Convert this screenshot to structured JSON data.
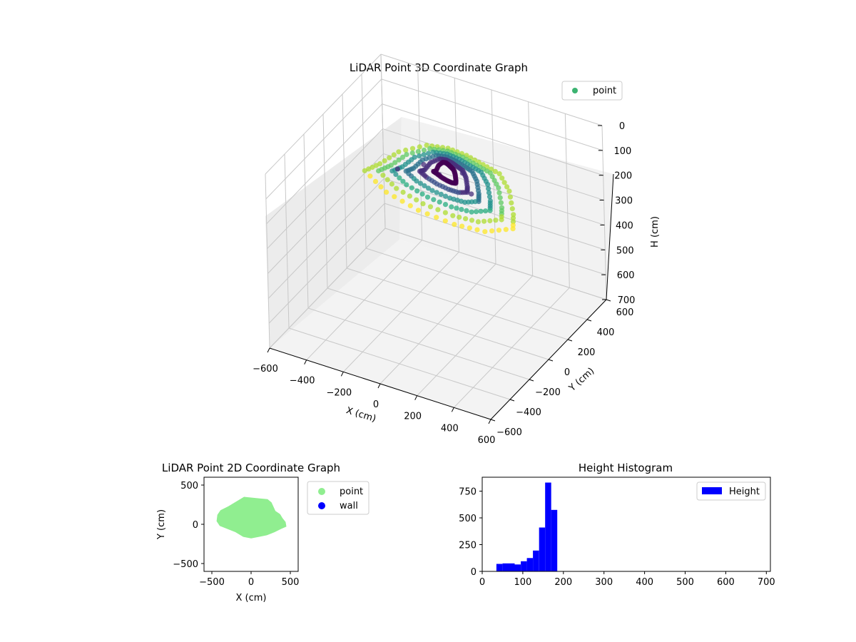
{
  "chart_data": [
    {
      "type": "scatter",
      "title": "LiDAR Point 3D Coordinate Graph",
      "xlabel": "X (cm)",
      "ylabel": "Y (cm)",
      "zlabel": "H (cm)",
      "xlim": [
        -600,
        600
      ],
      "ylim": [
        -600,
        600
      ],
      "zlim": [
        0,
        700
      ],
      "z_inverted": true,
      "xticks": [
        "−600",
        "−400",
        "−200",
        "0",
        "200",
        "400",
        "600"
      ],
      "yticks": [
        "−600",
        "−400",
        "−200",
        "0",
        "200",
        "400",
        "600"
      ],
      "zticks": [
        "0",
        "100",
        "200",
        "300",
        "400",
        "500",
        "600",
        "700"
      ],
      "legend": [
        {
          "label": "point",
          "color": "#3cb371"
        }
      ],
      "legend_position": "upper-right",
      "colormap": "viridis",
      "series": [
        {
          "name": "point",
          "description_points": "dome-shaped point cloud",
          "points": [
            {
              "x": -350,
              "y": 100,
              "h": 180
            },
            {
              "x": -300,
              "y": 200,
              "h": 160
            },
            {
              "x": -200,
              "y": 300,
              "h": 150
            },
            {
              "x": -100,
              "y": 330,
              "h": 150
            },
            {
              "x": 0,
              "y": 330,
              "h": 155
            },
            {
              "x": 100,
              "y": 310,
              "h": 160
            },
            {
              "x": 200,
              "y": 290,
              "h": 165
            },
            {
              "x": 300,
              "y": 200,
              "h": 175
            },
            {
              "x": 400,
              "y": 50,
              "h": 185
            },
            {
              "x": 450,
              "y": -50,
              "h": 190
            },
            {
              "x": 350,
              "y": -150,
              "h": 185
            },
            {
              "x": 200,
              "y": -180,
              "h": 180
            },
            {
              "x": 0,
              "y": -170,
              "h": 175
            },
            {
              "x": -200,
              "y": -120,
              "h": 170
            },
            {
              "x": -380,
              "y": 0,
              "h": 175
            },
            {
              "x": 0,
              "y": 50,
              "h": 120
            },
            {
              "x": 100,
              "y": 100,
              "h": 110
            },
            {
              "x": -100,
              "y": 80,
              "h": 115
            },
            {
              "x": 200,
              "y": 0,
              "h": 130
            },
            {
              "x": -200,
              "y": 0,
              "h": 125
            }
          ]
        }
      ]
    },
    {
      "type": "scatter",
      "title": "LiDAR Point 2D Coordinate Graph",
      "xlabel": "X (cm)",
      "ylabel": "Y (cm)",
      "xlim": [
        -600,
        600
      ],
      "ylim": [
        -600,
        600
      ],
      "xticks": [
        "−500",
        "0",
        "500"
      ],
      "yticks": [
        "500",
        "0",
        "−500"
      ],
      "legend": [
        {
          "label": "point",
          "color": "#90ee90"
        },
        {
          "label": "wall",
          "color": "#0000ff"
        }
      ],
      "legend_position": "outside-right",
      "series": [
        {
          "name": "point",
          "outline": [
            [
              -430,
              120
            ],
            [
              -390,
              180
            ],
            [
              -290,
              230
            ],
            [
              -190,
              290
            ],
            [
              -90,
              350
            ],
            [
              10,
              340
            ],
            [
              110,
              330
            ],
            [
              210,
              320
            ],
            [
              260,
              280
            ],
            [
              310,
              170
            ],
            [
              370,
              130
            ],
            [
              400,
              80
            ],
            [
              440,
              30
            ],
            [
              450,
              -30
            ],
            [
              380,
              -60
            ],
            [
              300,
              -100
            ],
            [
              200,
              -140
            ],
            [
              100,
              -160
            ],
            [
              0,
              -180
            ],
            [
              -100,
              -160
            ],
            [
              -200,
              -100
            ],
            [
              -300,
              -60
            ],
            [
              -400,
              -20
            ],
            [
              -440,
              40
            ]
          ]
        },
        {
          "name": "wall",
          "points": []
        }
      ]
    },
    {
      "type": "bar",
      "title": "Height Histogram",
      "xlabel": "",
      "ylabel": "",
      "xlim": [
        0,
        710
      ],
      "ylim": [
        0,
        880
      ],
      "xticks": [
        "0",
        "100",
        "200",
        "300",
        "400",
        "500",
        "600",
        "700"
      ],
      "yticks": [
        "0",
        "250",
        "500",
        "750"
      ],
      "legend": [
        {
          "label": "Height",
          "color": "#0000ff"
        }
      ],
      "legend_position": "upper-right",
      "bin_width": 15,
      "series": [
        {
          "name": "Height",
          "bins": [
            {
              "x0": 35,
              "value": 70
            },
            {
              "x0": 50,
              "value": 75
            },
            {
              "x0": 65,
              "value": 75
            },
            {
              "x0": 80,
              "value": 65
            },
            {
              "x0": 95,
              "value": 95
            },
            {
              "x0": 110,
              "value": 125
            },
            {
              "x0": 125,
              "value": 195
            },
            {
              "x0": 140,
              "value": 410
            },
            {
              "x0": 155,
              "value": 830
            },
            {
              "x0": 170,
              "value": 575
            }
          ]
        }
      ]
    }
  ]
}
